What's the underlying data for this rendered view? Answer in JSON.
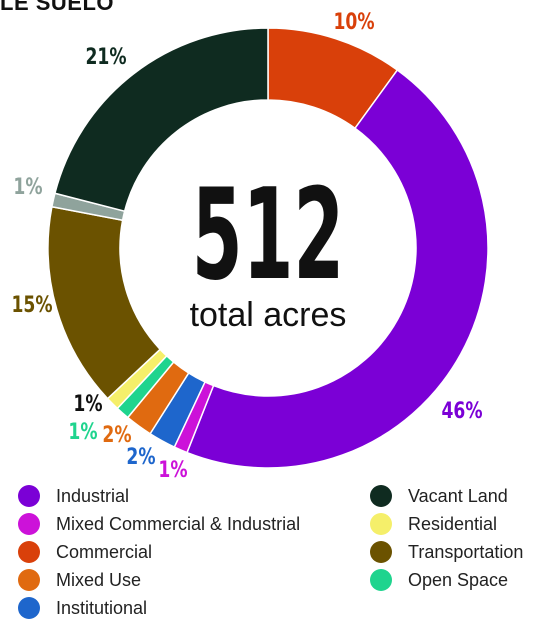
{
  "header": {
    "cut_text": "LE SUELO"
  },
  "chart_data": {
    "type": "pie",
    "style": "donut",
    "center_value": "512",
    "center_label": "total acres",
    "categories": [
      "Commercial",
      "Industrial",
      "Mixed Commercial & Industrial",
      "Institutional",
      "Mixed Use",
      "Open Space",
      "Residential",
      "Transportation",
      "Open Space",
      "Vacant Land"
    ],
    "slices": [
      {
        "category": "Commercial",
        "value": 10,
        "label": "10%",
        "color": "#D9400A"
      },
      {
        "category": "Industrial",
        "value": 46,
        "label": "46%",
        "color": "#7B00D6"
      },
      {
        "category": "Mixed Commercial & Industrial",
        "value": 1,
        "label": "1%",
        "color": "#CC12D9"
      },
      {
        "category": "Institutional",
        "value": 2,
        "label": "2%",
        "color": "#1E66CC"
      },
      {
        "category": "Mixed Use",
        "value": 2,
        "label": "2%",
        "color": "#E06A10"
      },
      {
        "category": "Open Space",
        "value": 1,
        "label": "1%",
        "color": "#1FD48E"
      },
      {
        "category": "Residential",
        "value": 1,
        "label": "1%",
        "color": "#F5EF6A"
      },
      {
        "category": "Transportation",
        "value": 15,
        "label": "15%",
        "color": "#6B5200"
      },
      {
        "category": "Open Space",
        "value": 1,
        "label": "1%",
        "color": "#8FA39C"
      },
      {
        "category": "Vacant Land",
        "value": 21,
        "label": "21%",
        "color": "#0F2B20"
      }
    ],
    "legend": [
      {
        "label": "Industrial",
        "color": "#7B00D6"
      },
      {
        "label": "Mixed Commercial & Industrial",
        "color": "#CC12D9"
      },
      {
        "label": "Commercial",
        "color": "#D9400A"
      },
      {
        "label": "Mixed Use",
        "color": "#E06A10"
      },
      {
        "label": "Institutional",
        "color": "#1E66CC"
      },
      {
        "label": "Vacant Land",
        "color": "#0F2B20"
      },
      {
        "label": "Residential",
        "color": "#F5EF6A"
      },
      {
        "label": "Transportation",
        "color": "#6B5200"
      },
      {
        "label": "Open Space",
        "color": "#1FD48E"
      }
    ],
    "legend_placement": "bottom"
  }
}
